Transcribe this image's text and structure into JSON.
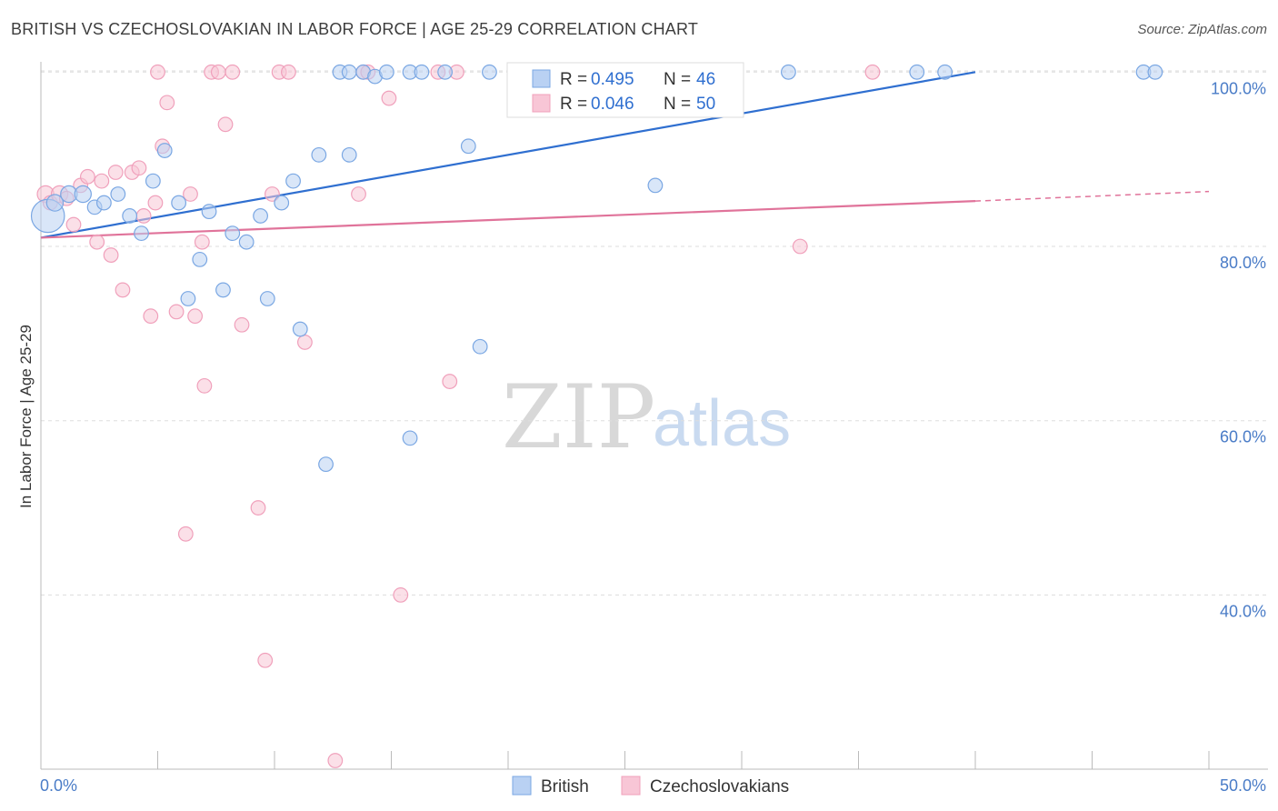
{
  "header": {
    "title": "BRITISH VS CZECHOSLOVAKIAN IN LABOR FORCE | AGE 25-29 CORRELATION CHART",
    "source": "Source: ZipAtlas.com"
  },
  "watermark": {
    "zip": "ZIP",
    "atlas": "atlas"
  },
  "colors": {
    "british": "#7aa7e3",
    "british_fill": "#b9d1f3",
    "british_line": "#2f6fd0",
    "czech": "#f0a0bb",
    "czech_fill": "#f8c6d6",
    "czech_line": "#e0739a",
    "axis_text": "#4a7cc7",
    "grid": "#dddddd"
  },
  "legend": {
    "british": {
      "r_label": "R =",
      "r_value": "0.495",
      "n_label": "N =",
      "n_value": "46"
    },
    "czech": {
      "r_label": "R =",
      "r_value": "0.046",
      "n_label": "N =",
      "n_value": "50"
    }
  },
  "bottom_legend": {
    "british": "British",
    "czech": "Czechoslovakians"
  },
  "chart_data": {
    "type": "scatter",
    "title": "BRITISH VS CZECHOSLOVAKIAN IN LABOR FORCE | AGE 25-29 CORRELATION CHART",
    "xlabel": "",
    "ylabel": "In Labor Force | Age 25-29",
    "xlim": [
      0,
      50
    ],
    "ylim": [
      20,
      102
    ],
    "x_tick_labels": [
      "0.0%",
      "50.0%"
    ],
    "y_ticks": [
      40,
      60,
      80,
      100
    ],
    "y_tick_labels": [
      "40.0%",
      "60.0%",
      "80.0%",
      "100.0%"
    ],
    "grid": true,
    "legend_position": "top-center",
    "series": [
      {
        "name": "British",
        "r": 0.495,
        "n": 46,
        "trend": {
          "x": [
            0,
            40
          ],
          "y": [
            81.0,
            100.0
          ],
          "dashed_extension": false
        },
        "points": [
          [
            0.3,
            83.5,
            28
          ],
          [
            0.6,
            85.0,
            14
          ],
          [
            1.2,
            86.0,
            14
          ],
          [
            1.8,
            86.0,
            14
          ],
          [
            2.3,
            84.5,
            12
          ],
          [
            2.7,
            85.0,
            12
          ],
          [
            3.3,
            86.0,
            12
          ],
          [
            3.8,
            83.5,
            12
          ],
          [
            4.3,
            81.5,
            12
          ],
          [
            4.8,
            87.5,
            12
          ],
          [
            5.3,
            91.0,
            12
          ],
          [
            5.9,
            85.0,
            12
          ],
          [
            6.3,
            74.0,
            12
          ],
          [
            6.8,
            78.5,
            12
          ],
          [
            7.2,
            84.0,
            12
          ],
          [
            7.8,
            75.0,
            12
          ],
          [
            8.2,
            81.5,
            12
          ],
          [
            8.8,
            80.5,
            12
          ],
          [
            9.4,
            83.5,
            12
          ],
          [
            9.7,
            74.0,
            12
          ],
          [
            10.3,
            85.0,
            12
          ],
          [
            10.8,
            87.5,
            12
          ],
          [
            11.1,
            70.5,
            12
          ],
          [
            11.9,
            90.5,
            12
          ],
          [
            12.2,
            55.0,
            12
          ],
          [
            12.8,
            100.0,
            12
          ],
          [
            13.2,
            100.0,
            12
          ],
          [
            13.2,
            90.5,
            12
          ],
          [
            13.8,
            100.0,
            12
          ],
          [
            14.3,
            99.5,
            12
          ],
          [
            14.8,
            100.0,
            12
          ],
          [
            15.8,
            100.0,
            12
          ],
          [
            15.8,
            58.0,
            12
          ],
          [
            16.3,
            100.0,
            12
          ],
          [
            17.3,
            100.0,
            12
          ],
          [
            18.3,
            91.5,
            12
          ],
          [
            18.8,
            68.5,
            12
          ],
          [
            19.2,
            100.0,
            12
          ],
          [
            26.3,
            87.0,
            12
          ],
          [
            27.0,
            100.0,
            12
          ],
          [
            27.8,
            100.0,
            12
          ],
          [
            32.0,
            100.0,
            12
          ],
          [
            37.5,
            100.0,
            12
          ],
          [
            38.7,
            100.0,
            12
          ],
          [
            47.2,
            100.0,
            12
          ],
          [
            47.7,
            100.0,
            12
          ]
        ]
      },
      {
        "name": "Czechoslovakians",
        "r": 0.046,
        "n": 50,
        "trend": {
          "x": [
            0,
            40
          ],
          "y": [
            81.0,
            85.2
          ],
          "dashed_extension": true,
          "dashed_to": [
            50,
            86.3
          ]
        },
        "points": [
          [
            0.2,
            86.0,
            14
          ],
          [
            0.4,
            85.0,
            12
          ],
          [
            0.8,
            86.0,
            14
          ],
          [
            1.1,
            85.5,
            12
          ],
          [
            1.4,
            82.5,
            12
          ],
          [
            1.7,
            87.0,
            12
          ],
          [
            2.0,
            88.0,
            12
          ],
          [
            2.4,
            80.5,
            12
          ],
          [
            2.6,
            87.5,
            12
          ],
          [
            3.0,
            79.0,
            12
          ],
          [
            3.2,
            88.5,
            12
          ],
          [
            3.5,
            75.0,
            12
          ],
          [
            3.9,
            88.5,
            12
          ],
          [
            4.2,
            89.0,
            12
          ],
          [
            4.4,
            83.5,
            12
          ],
          [
            4.7,
            72.0,
            12
          ],
          [
            4.9,
            85.0,
            12
          ],
          [
            5.2,
            91.5,
            12
          ],
          [
            5.4,
            96.5,
            12
          ],
          [
            5.8,
            72.5,
            12
          ],
          [
            6.2,
            47.0,
            12
          ],
          [
            6.4,
            86.0,
            12
          ],
          [
            6.6,
            72.0,
            12
          ],
          [
            6.9,
            80.5,
            12
          ],
          [
            7.0,
            64.0,
            12
          ],
          [
            7.3,
            100.0,
            12
          ],
          [
            7.6,
            100.0,
            12
          ],
          [
            7.9,
            94.0,
            12
          ],
          [
            8.2,
            100.0,
            12
          ],
          [
            8.6,
            71.0,
            12
          ],
          [
            9.3,
            50.0,
            12
          ],
          [
            9.6,
            32.5,
            12
          ],
          [
            9.9,
            86.0,
            12
          ],
          [
            10.2,
            100.0,
            12
          ],
          [
            10.6,
            100.0,
            12
          ],
          [
            11.3,
            69.0,
            12
          ],
          [
            12.6,
            21.0,
            12
          ],
          [
            13.6,
            86.0,
            12
          ],
          [
            13.8,
            100.0,
            12
          ],
          [
            14.0,
            100.0,
            12
          ],
          [
            14.9,
            97.0,
            12
          ],
          [
            15.4,
            40.0,
            12
          ],
          [
            17.0,
            100.0,
            12
          ],
          [
            17.5,
            64.5,
            12
          ],
          [
            17.8,
            100.0,
            12
          ],
          [
            20.3,
            100.0,
            12
          ],
          [
            20.6,
            100.0,
            12
          ],
          [
            32.5,
            80.0,
            12
          ],
          [
            35.6,
            100.0,
            12
          ],
          [
            5.0,
            100.0,
            12
          ]
        ]
      }
    ]
  }
}
